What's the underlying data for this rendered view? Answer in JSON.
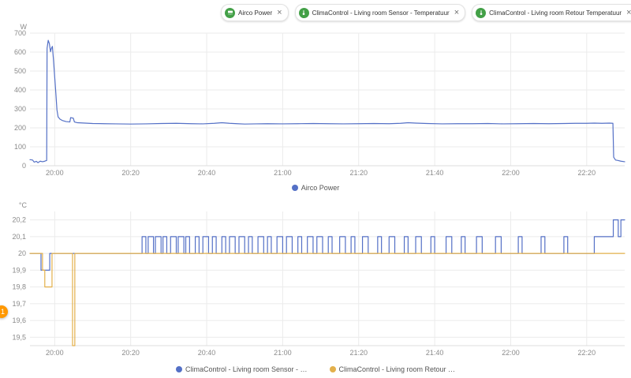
{
  "colors": {
    "blue": "#5470c6",
    "orange": "#e3b04b",
    "chip_icon_bg": "#43a047",
    "grid": "#ebebeb",
    "axis_line": "#dcdcdc",
    "axis_text": "#8a8a8a",
    "badge_bg": "#ff9800"
  },
  "chips": [
    {
      "label": "Airco Power",
      "icon": "air-conditioner-icon"
    },
    {
      "label": "ClimaControl - Living room Sensor - Temperatuur",
      "icon": "thermometer-icon"
    },
    {
      "label": "ClimaControl - Living room Retour Temperatuur",
      "icon": "thermometer-icon"
    }
  ],
  "badge": {
    "count": "1"
  },
  "chart_data": [
    {
      "id": "power",
      "type": "line",
      "title": "Airco Power history",
      "unit": "W",
      "x_note": "minutes after 19:50",
      "xlim": [
        3.5,
        160
      ],
      "ylim": [
        0,
        700
      ],
      "grid": true,
      "xticks": [
        {
          "t": 10,
          "label": "20:00"
        },
        {
          "t": 30,
          "label": "20:20"
        },
        {
          "t": 50,
          "label": "20:40"
        },
        {
          "t": 70,
          "label": "21:00"
        },
        {
          "t": 90,
          "label": "21:20"
        },
        {
          "t": 110,
          "label": "21:40"
        },
        {
          "t": 130,
          "label": "22:00"
        },
        {
          "t": 150,
          "label": "22:20"
        }
      ],
      "yticks": [
        {
          "v": 0,
          "label": "0"
        },
        {
          "v": 100,
          "label": "100"
        },
        {
          "v": 200,
          "label": "200"
        },
        {
          "v": 300,
          "label": "300"
        },
        {
          "v": 400,
          "label": "400"
        },
        {
          "v": 500,
          "label": "500"
        },
        {
          "v": 600,
          "label": "600"
        },
        {
          "v": 700,
          "label": "700"
        }
      ],
      "series": [
        {
          "name": "Airco Power",
          "color": "#5470c6",
          "step": false,
          "points": [
            [
              3.5,
              32
            ],
            [
              4.2,
              30
            ],
            [
              4.6,
              19
            ],
            [
              5.2,
              23
            ],
            [
              5.6,
              16
            ],
            [
              6.2,
              24
            ],
            [
              6.8,
              21
            ],
            [
              7.4,
              24
            ],
            [
              7.9,
              28
            ],
            [
              8.0,
              620
            ],
            [
              8.3,
              662
            ],
            [
              8.6,
              645
            ],
            [
              8.9,
              602
            ],
            [
              9.1,
              618
            ],
            [
              9.4,
              630
            ],
            [
              9.7,
              555
            ],
            [
              10.0,
              470
            ],
            [
              10.3,
              385
            ],
            [
              10.6,
              295
            ],
            [
              10.9,
              258
            ],
            [
              11.4,
              246
            ],
            [
              12.0,
              239
            ],
            [
              13.0,
              233
            ],
            [
              14.0,
              231
            ],
            [
              14.2,
              254
            ],
            [
              14.9,
              251
            ],
            [
              15.2,
              231
            ],
            [
              16,
              227
            ],
            [
              18,
              225
            ],
            [
              20,
              223
            ],
            [
              23,
              222
            ],
            [
              26,
              221
            ],
            [
              30,
              220
            ],
            [
              34,
              221
            ],
            [
              38,
              223
            ],
            [
              42,
              224
            ],
            [
              46,
              222
            ],
            [
              49,
              221
            ],
            [
              52,
              224
            ],
            [
              54,
              227
            ],
            [
              56,
              224
            ],
            [
              58,
              222
            ],
            [
              60,
              220
            ],
            [
              63,
              221
            ],
            [
              66,
              222
            ],
            [
              70,
              221
            ],
            [
              74,
              222
            ],
            [
              78,
              223
            ],
            [
              82,
              222
            ],
            [
              86,
              221
            ],
            [
              90,
              222
            ],
            [
              94,
              223
            ],
            [
              98,
              222
            ],
            [
              101,
              224
            ],
            [
              103,
              227
            ],
            [
              105,
              225
            ],
            [
              108,
              223
            ],
            [
              112,
              221
            ],
            [
              116,
              222
            ],
            [
              120,
              222
            ],
            [
              124,
              223
            ],
            [
              128,
              221
            ],
            [
              132,
              222
            ],
            [
              136,
              223
            ],
            [
              140,
              222
            ],
            [
              144,
              223
            ],
            [
              147,
              224
            ],
            [
              150,
              224
            ],
            [
              152,
              225
            ],
            [
              154,
              224
            ],
            [
              156,
              225
            ],
            [
              156.9,
              224
            ],
            [
              157.1,
              45
            ],
            [
              157.6,
              30
            ],
            [
              158.2,
              28
            ],
            [
              159,
              24
            ],
            [
              160,
              21
            ]
          ]
        }
      ],
      "legend": [
        {
          "label": "Airco Power",
          "color": "#5470c6"
        }
      ]
    },
    {
      "id": "temp",
      "type": "line",
      "title": "Temperature history",
      "unit": "°C",
      "x_note": "minutes after 19:50",
      "xlim": [
        3.5,
        160
      ],
      "ylim": [
        19.45,
        20.25
      ],
      "grid": true,
      "xticks": [
        {
          "t": 10,
          "label": "20:00"
        },
        {
          "t": 30,
          "label": "20:20"
        },
        {
          "t": 50,
          "label": "20:40"
        },
        {
          "t": 70,
          "label": "21:00"
        },
        {
          "t": 90,
          "label": "21:20"
        },
        {
          "t": 110,
          "label": "21:40"
        },
        {
          "t": 130,
          "label": "22:00"
        },
        {
          "t": 150,
          "label": "22:20"
        }
      ],
      "yticks": [
        {
          "v": 19.5,
          "label": "19,5"
        },
        {
          "v": 19.6,
          "label": "19,6"
        },
        {
          "v": 19.7,
          "label": "19,7"
        },
        {
          "v": 19.8,
          "label": "19,8"
        },
        {
          "v": 19.9,
          "label": "19,9"
        },
        {
          "v": 20,
          "label": "20"
        },
        {
          "v": 20.1,
          "label": "20,1"
        },
        {
          "v": 20.2,
          "label": "20,2"
        }
      ],
      "series": [
        {
          "name": "ClimaControl - Living room Sensor - Temperatuur",
          "color": "#5470c6",
          "step": true,
          "points": [
            [
              3.5,
              20
            ],
            [
              6.4,
              19.9
            ],
            [
              8.7,
              20
            ],
            [
              33,
              20.1
            ],
            [
              34,
              20
            ],
            [
              34.6,
              20.1
            ],
            [
              36,
              20
            ],
            [
              36.5,
              20.1
            ],
            [
              38,
              20
            ],
            [
              38.5,
              20.1
            ],
            [
              39.5,
              20
            ],
            [
              40.5,
              20.1
            ],
            [
              42,
              20
            ],
            [
              42.5,
              20.1
            ],
            [
              44,
              20
            ],
            [
              44.5,
              20.1
            ],
            [
              45.5,
              20
            ],
            [
              47,
              20.1
            ],
            [
              48,
              20
            ],
            [
              49,
              20.1
            ],
            [
              50.5,
              20
            ],
            [
              51.5,
              20.1
            ],
            [
              52.5,
              20
            ],
            [
              54,
              20.1
            ],
            [
              55,
              20
            ],
            [
              56,
              20.1
            ],
            [
              57.5,
              20
            ],
            [
              58.5,
              20.1
            ],
            [
              60,
              20
            ],
            [
              61,
              20.1
            ],
            [
              62,
              20
            ],
            [
              63.5,
              20.1
            ],
            [
              65,
              20
            ],
            [
              66,
              20.1
            ],
            [
              67,
              20
            ],
            [
              68.5,
              20.1
            ],
            [
              70,
              20
            ],
            [
              71,
              20.1
            ],
            [
              72.5,
              20
            ],
            [
              74,
              20.1
            ],
            [
              75,
              20
            ],
            [
              76.5,
              20.1
            ],
            [
              78,
              20
            ],
            [
              79,
              20.1
            ],
            [
              80.5,
              20
            ],
            [
              82,
              20.1
            ],
            [
              83,
              20
            ],
            [
              85,
              20.1
            ],
            [
              86.5,
              20
            ],
            [
              88,
              20.1
            ],
            [
              89,
              20
            ],
            [
              91,
              20.1
            ],
            [
              92.5,
              20
            ],
            [
              95,
              20.1
            ],
            [
              96,
              20
            ],
            [
              98,
              20.1
            ],
            [
              99.5,
              20
            ],
            [
              102,
              20.1
            ],
            [
              103,
              20
            ],
            [
              105,
              20.1
            ],
            [
              106.5,
              20
            ],
            [
              109,
              20.1
            ],
            [
              110,
              20
            ],
            [
              113,
              20.1
            ],
            [
              114.5,
              20
            ],
            [
              117,
              20.1
            ],
            [
              118,
              20
            ],
            [
              121,
              20.1
            ],
            [
              122.5,
              20
            ],
            [
              126,
              20.1
            ],
            [
              127.5,
              20
            ],
            [
              132,
              20.1
            ],
            [
              133,
              20
            ],
            [
              138,
              20.1
            ],
            [
              139,
              20
            ],
            [
              144,
              20.1
            ],
            [
              145,
              20
            ],
            [
              152,
              20.1
            ],
            [
              157,
              20.2
            ],
            [
              158.3,
              20.1
            ],
            [
              159,
              20.2
            ]
          ]
        },
        {
          "name": "ClimaControl - Living room Retour Temperatuur",
          "color": "#e3b04b",
          "step": true,
          "points": [
            [
              3.5,
              20
            ],
            [
              6.8,
              19.9
            ],
            [
              7.4,
              19.8
            ],
            [
              9.3,
              20
            ],
            [
              14.7,
              19.45
            ],
            [
              15.3,
              20
            ]
          ]
        }
      ],
      "legend": [
        {
          "label": "ClimaControl - Living room Sensor - …",
          "color": "#5470c6"
        },
        {
          "label": "ClimaControl - Living room Retour …",
          "color": "#e3b04b"
        }
      ]
    }
  ]
}
